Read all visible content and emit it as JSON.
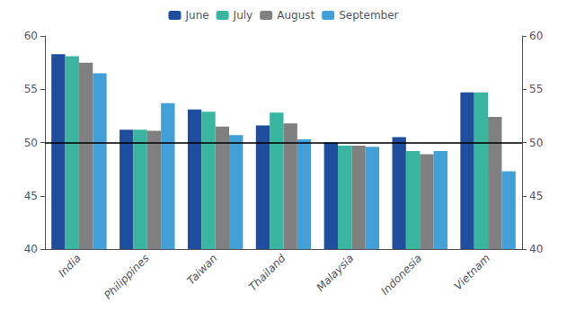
{
  "chart_data": {
    "type": "bar",
    "categories": [
      "India",
      "Philippines",
      "Taiwan",
      "Thailand",
      "Malaysia",
      "Indonesia",
      "Vietnam"
    ],
    "series": [
      {
        "name": "June",
        "color": "#1f4e9e",
        "values": [
          58.3,
          51.2,
          53.1,
          51.6,
          50.0,
          50.5,
          54.7
        ]
      },
      {
        "name": "July",
        "color": "#3ab5a0",
        "values": [
          58.1,
          51.2,
          52.9,
          52.8,
          49.7,
          49.2,
          54.7
        ]
      },
      {
        "name": "August",
        "color": "#808080",
        "values": [
          57.5,
          51.1,
          51.5,
          51.8,
          49.7,
          48.9,
          52.4
        ]
      },
      {
        "name": "September",
        "color": "#41a0d8",
        "values": [
          56.5,
          53.7,
          50.7,
          50.3,
          49.6,
          49.2,
          47.3
        ]
      }
    ],
    "ylim": [
      40,
      60
    ],
    "yticks": [
      40,
      45,
      50,
      55,
      60
    ],
    "y2lim": [
      40,
      60
    ],
    "y2ticks": [
      40,
      45,
      50,
      55,
      60
    ],
    "hline": 50,
    "grid": false,
    "legend": "top"
  }
}
